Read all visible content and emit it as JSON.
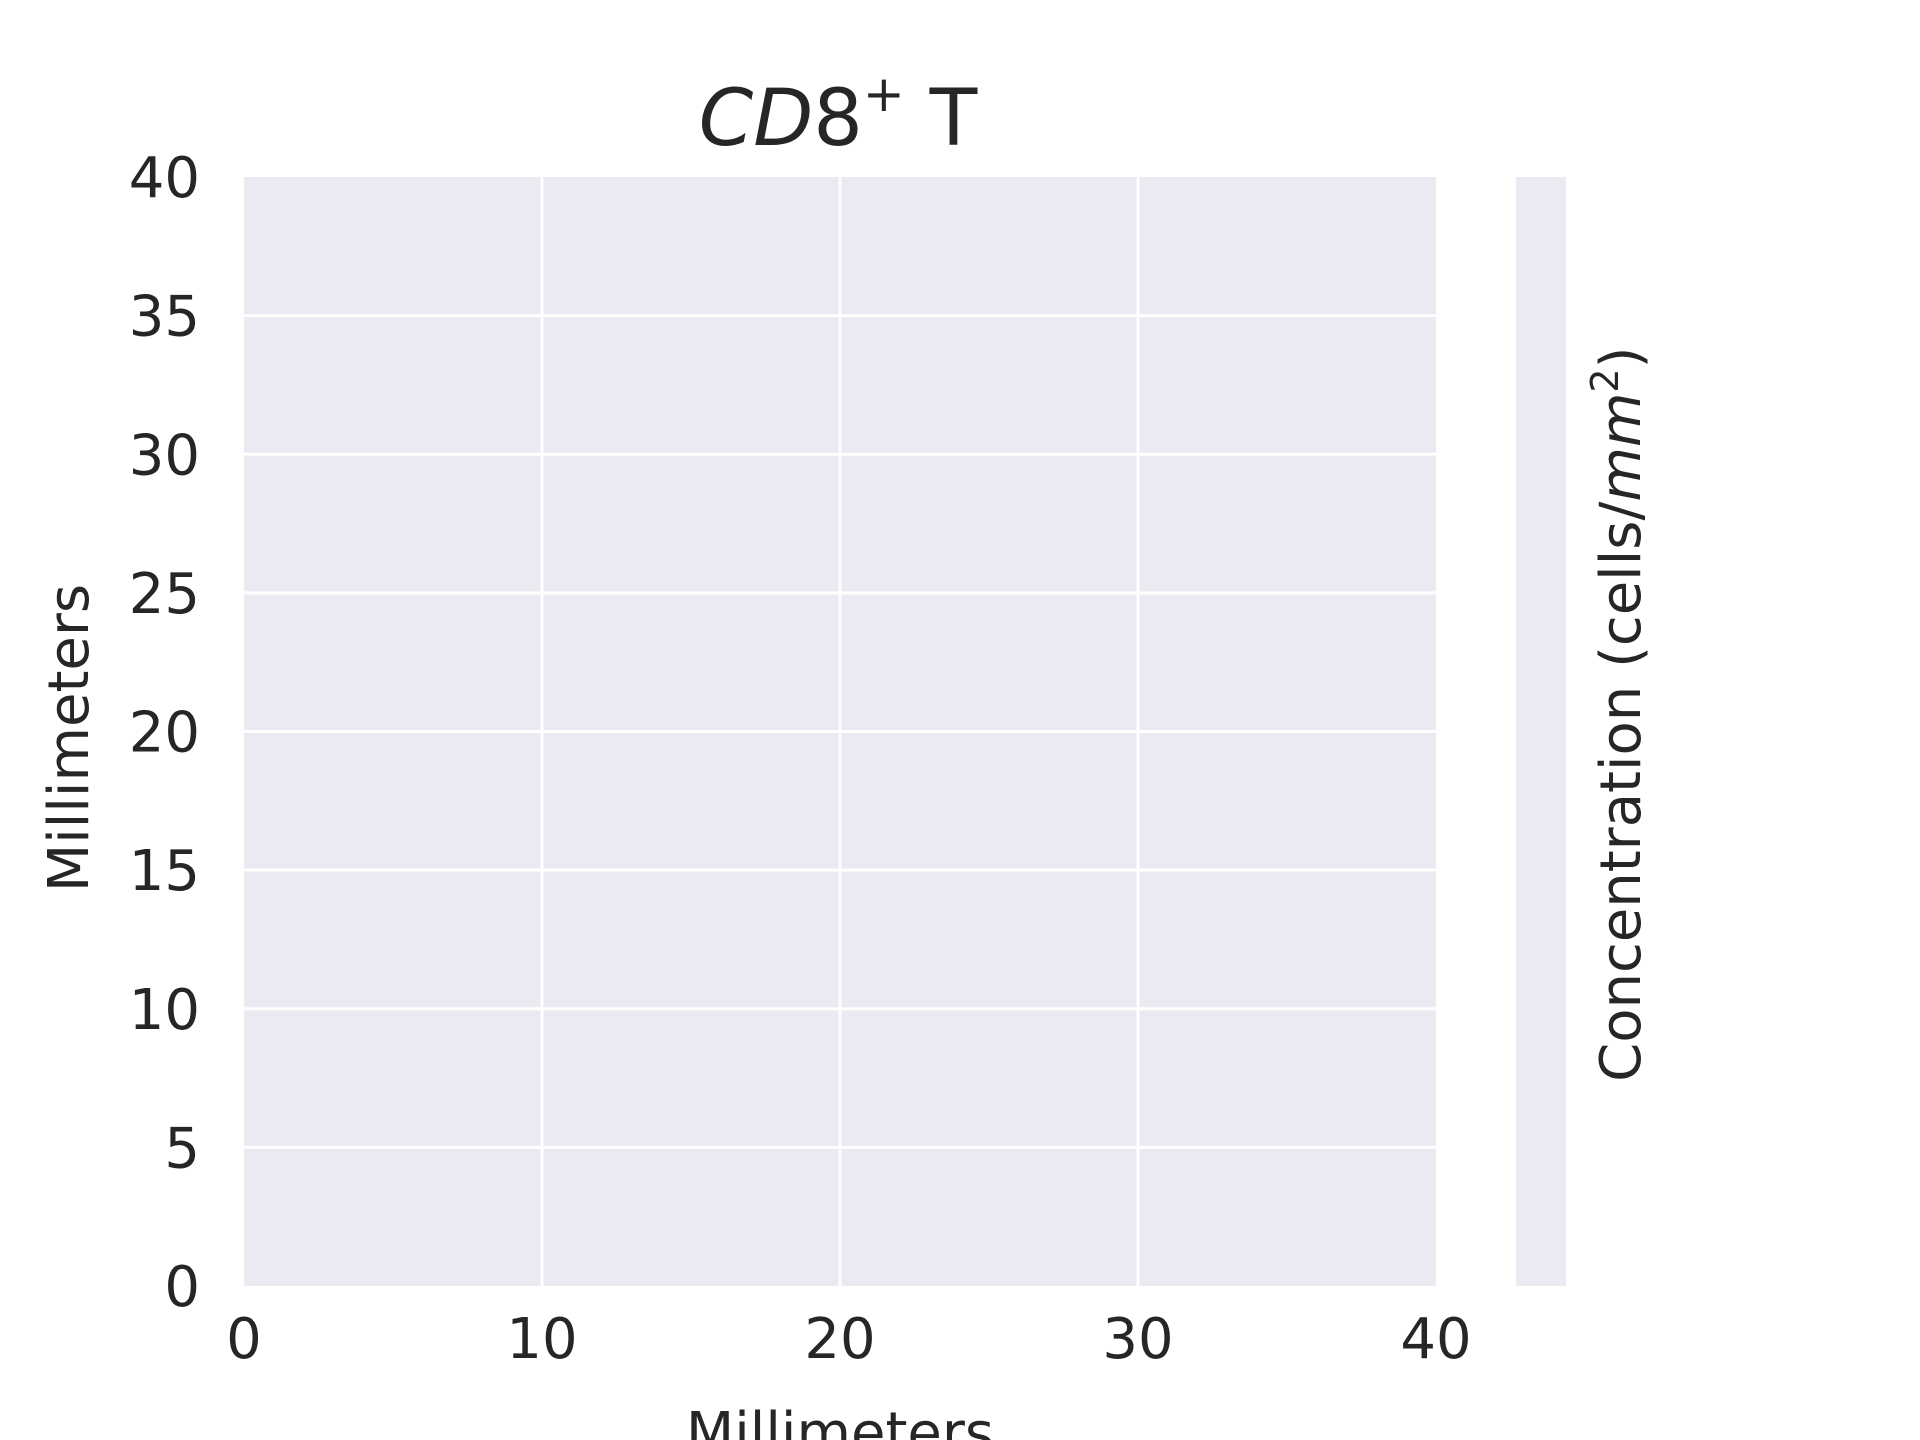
{
  "chart_data": {
    "type": "heatmap",
    "title": {
      "italic": "CD",
      "plain": "8",
      "superscript": "+",
      "suffix": " T"
    },
    "xlabel": "Millimeters",
    "ylabel": "Millimeters",
    "xlim": [
      0,
      40
    ],
    "ylim": [
      0,
      40
    ],
    "x_tick_labels": [
      "0",
      "10",
      "20",
      "30",
      "40"
    ],
    "y_tick_labels": [
      "0",
      "5",
      "10",
      "15",
      "20",
      "25",
      "30",
      "35",
      "40"
    ],
    "grid": true,
    "values": [],
    "colorbar": {
      "label_prefix": "Concentration (cells/",
      "label_italic": "mm",
      "label_superscript": "2",
      "label_suffix": ")"
    },
    "colors": {
      "plot_background": "#eaeaf2",
      "grid": "#ffffff",
      "text": "#262626"
    }
  }
}
